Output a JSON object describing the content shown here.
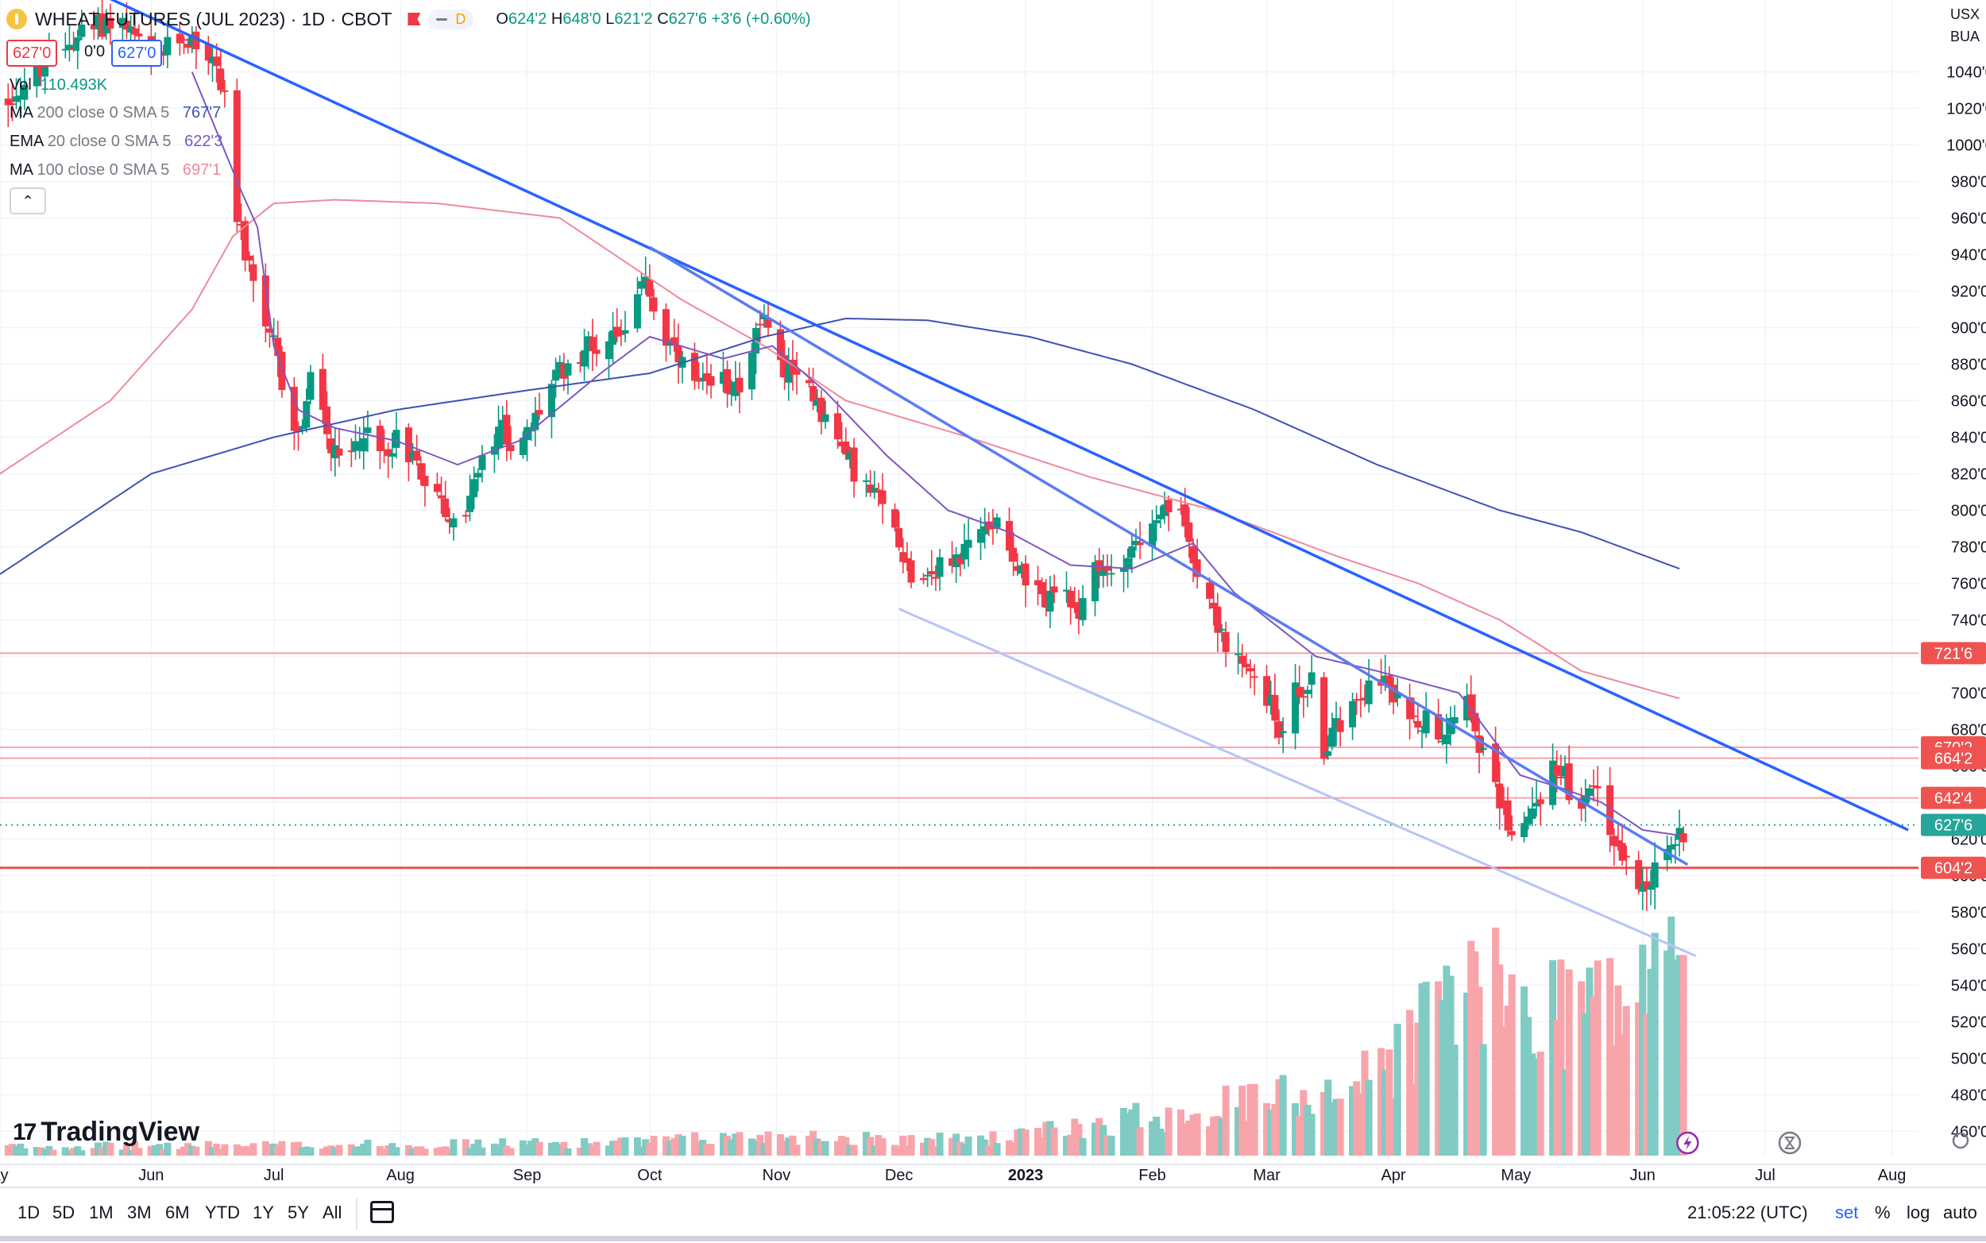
{
  "header": {
    "symbol": "WHEAT FUTURES (JUL 2023) · 1D · CBOT",
    "pill_letter": "D",
    "ohlc": {
      "o_label": "O",
      "o": "624'2",
      "h_label": "H",
      "h": "648'0",
      "l_label": "L",
      "l": "621'2",
      "c_label": "C",
      "c": "627'6",
      "change": "+3'6 (+0.60%)"
    }
  },
  "quote": {
    "bid": "627'0",
    "spread": "0'0",
    "ask": "627'0"
  },
  "indicators": [
    {
      "name": "Vol",
      "params": "",
      "value": "110.493K",
      "color": "#089981"
    },
    {
      "name": "MA",
      "params": "200 close 0 SMA 5",
      "value": "767'7",
      "color": "#2962ff"
    },
    {
      "name": "EMA",
      "params": "20 close 0 SMA 5",
      "value": "622'3",
      "color": "#7e57c2"
    },
    {
      "name": "MA",
      "params": "100 close 0 SMA 5",
      "value": "697'1",
      "color": "#e91e63"
    }
  ],
  "collapse_icon": "chevron-up-icon",
  "right_top": {
    "currency": "USX",
    "unit": "BUA"
  },
  "watermark": "TradingView",
  "chart_data": {
    "type": "candlestick",
    "title": "WHEAT FUTURES (JUL 2023) · 1D · CBOT",
    "ylim": [
      448,
      1075
    ],
    "y_ticks": [
      {
        "v": 460,
        "label": "460'0"
      },
      {
        "v": 480,
        "label": "480'0"
      },
      {
        "v": 500,
        "label": "500'0"
      },
      {
        "v": 520,
        "label": "520'0"
      },
      {
        "v": 540,
        "label": "540'0"
      },
      {
        "v": 560,
        "label": "560'0"
      },
      {
        "v": 580,
        "label": "580'0"
      },
      {
        "v": 600,
        "label": "600'0"
      },
      {
        "v": 620,
        "label": "620'0"
      },
      {
        "v": 640,
        "label": "640'0"
      },
      {
        "v": 660,
        "label": "660'0"
      },
      {
        "v": 680,
        "label": "680'0"
      },
      {
        "v": 700,
        "label": "700'0"
      },
      {
        "v": 720,
        "label": "720'0"
      },
      {
        "v": 740,
        "label": "740'0"
      },
      {
        "v": 760,
        "label": "760'0"
      },
      {
        "v": 780,
        "label": "780'0"
      },
      {
        "v": 800,
        "label": "800'0"
      },
      {
        "v": 820,
        "label": "820'0"
      },
      {
        "v": 840,
        "label": "840'0"
      },
      {
        "v": 860,
        "label": "860'0"
      },
      {
        "v": 880,
        "label": "880'0"
      },
      {
        "v": 900,
        "label": "900'0"
      },
      {
        "v": 920,
        "label": "920'0"
      },
      {
        "v": 940,
        "label": "940'0"
      },
      {
        "v": 960,
        "label": "960'0"
      },
      {
        "v": 980,
        "label": "980'0"
      },
      {
        "v": 1000,
        "label": "1000'0"
      },
      {
        "v": 1020,
        "label": "1020'0"
      },
      {
        "v": 1040,
        "label": "1040'0"
      }
    ],
    "x_labels": [
      {
        "label": "ay",
        "d": -37
      },
      {
        "label": "Jun",
        "d": 0
      },
      {
        "label": "Jul",
        "d": 30
      },
      {
        "label": "Aug",
        "d": 61
      },
      {
        "label": "Sep",
        "d": 92
      },
      {
        "label": "Oct",
        "d": 122
      },
      {
        "label": "Nov",
        "d": 153
      },
      {
        "label": "Dec",
        "d": 183
      },
      {
        "label": "2023",
        "d": 214,
        "bold": true
      },
      {
        "label": "Feb",
        "d": 245
      },
      {
        "label": "Mar",
        "d": 273
      },
      {
        "label": "Apr",
        "d": 304
      },
      {
        "label": "May",
        "d": 334
      },
      {
        "label": "Jun",
        "d": 365
      },
      {
        "label": "Jul",
        "d": 395
      },
      {
        "label": "Aug",
        "d": 426
      }
    ],
    "x_range_days": [
      -37,
      450
    ],
    "price_anchors": [
      [
        -37,
        1020
      ],
      [
        -28,
        1040
      ],
      [
        -18,
        1060
      ],
      [
        -8,
        1070
      ],
      [
        0,
        1045
      ],
      [
        8,
        1060
      ],
      [
        14,
        1050
      ],
      [
        18,
        1030
      ],
      [
        21,
        960
      ],
      [
        24,
        930
      ],
      [
        27,
        900
      ],
      [
        30,
        890
      ],
      [
        33,
        860
      ],
      [
        36,
        840
      ],
      [
        40,
        880
      ],
      [
        44,
        830
      ],
      [
        48,
        825
      ],
      [
        52,
        845
      ],
      [
        56,
        830
      ],
      [
        60,
        840
      ],
      [
        64,
        830
      ],
      [
        68,
        815
      ],
      [
        72,
        800
      ],
      [
        75,
        785
      ],
      [
        78,
        810
      ],
      [
        82,
        830
      ],
      [
        86,
        845
      ],
      [
        90,
        830
      ],
      [
        94,
        850
      ],
      [
        98,
        870
      ],
      [
        102,
        880
      ],
      [
        106,
        890
      ],
      [
        110,
        890
      ],
      [
        114,
        900
      ],
      [
        118,
        905
      ],
      [
        121,
        930
      ],
      [
        124,
        900
      ],
      [
        128,
        885
      ],
      [
        132,
        870
      ],
      [
        136,
        865
      ],
      [
        140,
        870
      ],
      [
        144,
        870
      ],
      [
        148,
        895
      ],
      [
        151,
        905
      ],
      [
        154,
        880
      ],
      [
        157,
        870
      ],
      [
        160,
        875
      ],
      [
        163,
        860
      ],
      [
        166,
        845
      ],
      [
        170,
        830
      ],
      [
        174,
        815
      ],
      [
        178,
        805
      ],
      [
        182,
        790
      ],
      [
        186,
        765
      ],
      [
        190,
        765
      ],
      [
        194,
        770
      ],
      [
        198,
        775
      ],
      [
        202,
        785
      ],
      [
        206,
        795
      ],
      [
        208,
        800
      ],
      [
        211,
        775
      ],
      [
        214,
        760
      ],
      [
        218,
        750
      ],
      [
        222,
        760
      ],
      [
        226,
        740
      ],
      [
        230,
        765
      ],
      [
        234,
        765
      ],
      [
        238,
        775
      ],
      [
        242,
        785
      ],
      [
        246,
        790
      ],
      [
        250,
        805
      ],
      [
        253,
        790
      ],
      [
        256,
        770
      ],
      [
        260,
        745
      ],
      [
        264,
        720
      ],
      [
        268,
        710
      ],
      [
        272,
        705
      ],
      [
        276,
        680
      ],
      [
        280,
        700
      ],
      [
        284,
        705
      ],
      [
        287,
        670
      ],
      [
        290,
        680
      ],
      [
        294,
        700
      ],
      [
        298,
        705
      ],
      [
        301,
        710
      ],
      [
        304,
        695
      ],
      [
        308,
        690
      ],
      [
        312,
        685
      ],
      [
        316,
        680
      ],
      [
        320,
        695
      ],
      [
        322,
        700
      ],
      [
        326,
        665
      ],
      [
        330,
        640
      ],
      [
        334,
        620
      ],
      [
        338,
        635
      ],
      [
        342,
        655
      ],
      [
        344,
        660
      ],
      [
        346,
        655
      ],
      [
        349,
        625
      ],
      [
        352,
        645
      ],
      [
        354,
        650
      ],
      [
        357,
        625
      ],
      [
        360,
        610
      ],
      [
        363,
        600
      ],
      [
        366,
        598
      ],
      [
        369,
        605
      ],
      [
        372,
        615
      ],
      [
        374,
        622
      ],
      [
        376,
        628
      ]
    ],
    "ma200_anchors": [
      [
        -37,
        765
      ],
      [
        0,
        820
      ],
      [
        30,
        840
      ],
      [
        60,
        855
      ],
      [
        90,
        865
      ],
      [
        122,
        875
      ],
      [
        150,
        895
      ],
      [
        170,
        905
      ],
      [
        190,
        904
      ],
      [
        215,
        895
      ],
      [
        240,
        880
      ],
      [
        270,
        855
      ],
      [
        300,
        825
      ],
      [
        330,
        800
      ],
      [
        350,
        788
      ],
      [
        374,
        768
      ]
    ],
    "ema20_anchors": [
      [
        10,
        1040
      ],
      [
        22,
        975
      ],
      [
        26,
        955
      ],
      [
        30,
        890
      ],
      [
        36,
        855
      ],
      [
        45,
        845
      ],
      [
        60,
        838
      ],
      [
        75,
        825
      ],
      [
        90,
        838
      ],
      [
        110,
        875
      ],
      [
        122,
        895
      ],
      [
        140,
        883
      ],
      [
        152,
        890
      ],
      [
        165,
        865
      ],
      [
        180,
        830
      ],
      [
        195,
        800
      ],
      [
        210,
        788
      ],
      [
        225,
        770
      ],
      [
        240,
        768
      ],
      [
        255,
        782
      ],
      [
        265,
        755
      ],
      [
        285,
        720
      ],
      [
        300,
        712
      ],
      [
        320,
        700
      ],
      [
        335,
        655
      ],
      [
        345,
        648
      ],
      [
        355,
        640
      ],
      [
        365,
        625
      ],
      [
        374,
        622
      ]
    ],
    "ma100_anchors": [
      [
        -37,
        820
      ],
      [
        -10,
        860
      ],
      [
        10,
        910
      ],
      [
        20,
        950
      ],
      [
        30,
        968
      ],
      [
        45,
        970
      ],
      [
        70,
        968
      ],
      [
        100,
        960
      ],
      [
        130,
        915
      ],
      [
        150,
        890
      ],
      [
        170,
        860
      ],
      [
        200,
        840
      ],
      [
        230,
        818
      ],
      [
        260,
        800
      ],
      [
        290,
        775
      ],
      [
        310,
        760
      ],
      [
        330,
        740
      ],
      [
        350,
        712
      ],
      [
        374,
        697
      ]
    ],
    "trendlines": [
      {
        "name": "main-downtrend",
        "from": [
          -10,
          1080
        ],
        "to": [
          430,
          625
        ],
        "color": "#2962ff"
      },
      {
        "name": "secondary-downtrend",
        "from": [
          122,
          944
        ],
        "to": [
          376,
          606
        ],
        "color": "#5b7cf2"
      },
      {
        "name": "lower-channel",
        "from": [
          183,
          746
        ],
        "to": [
          378,
          556
        ],
        "color": "#b7c4f5"
      }
    ],
    "horizontal_levels": [
      {
        "value": 721.75,
        "label": "721'6",
        "style": "thin"
      },
      {
        "value": 670.25,
        "label": "670'2",
        "style": "thin"
      },
      {
        "value": 664.25,
        "label": "664'2",
        "style": "thin"
      },
      {
        "value": 642.5,
        "label": "642'4",
        "style": "thin"
      },
      {
        "value": 604.25,
        "label": "604'2",
        "style": "thick"
      }
    ],
    "last_price": {
      "value": 627.75,
      "label": "627'6"
    },
    "volume_anchors": [
      [
        -37,
        4
      ],
      [
        60,
        5
      ],
      [
        120,
        6
      ],
      [
        150,
        9
      ],
      [
        190,
        7
      ],
      [
        210,
        8
      ],
      [
        230,
        14
      ],
      [
        245,
        18
      ],
      [
        262,
        22
      ],
      [
        275,
        25
      ],
      [
        285,
        30
      ],
      [
        295,
        32
      ],
      [
        305,
        45
      ],
      [
        318,
        75
      ],
      [
        330,
        70
      ],
      [
        340,
        65
      ],
      [
        350,
        72
      ],
      [
        360,
        66
      ],
      [
        370,
        80
      ],
      [
        375,
        110
      ]
    ],
    "volume_max": 125,
    "colors": {
      "up": "#089981",
      "down": "#f23645",
      "up_vol": "#80cbc4",
      "down_vol": "#f7a5ab",
      "ma200": "#3f51b5",
      "ema20": "#7e57c2",
      "ma100": "#ef8a9a"
    }
  },
  "bottom_bar": {
    "timeframes": [
      "1D",
      "5D",
      "1M",
      "3M",
      "6M",
      "YTD",
      "1Y",
      "5Y",
      "All"
    ],
    "clock": "21:05:22 (UTC)",
    "opts": [
      "set",
      "%",
      "log",
      "auto"
    ]
  }
}
